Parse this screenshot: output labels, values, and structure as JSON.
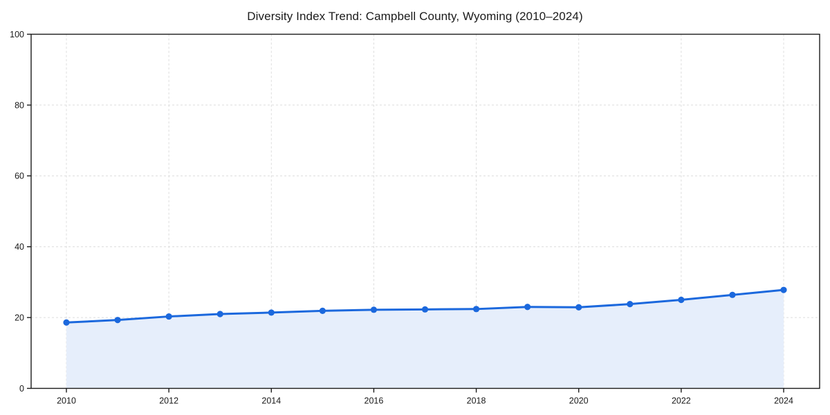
{
  "title": "Diversity Index Trend: Campbell County, Wyoming (2010–2024)",
  "chart_data": {
    "type": "area",
    "title": "Diversity Index Trend: Campbell County, Wyoming (2010–2024)",
    "x": [
      2010,
      2011,
      2012,
      2013,
      2014,
      2015,
      2016,
      2017,
      2018,
      2019,
      2020,
      2021,
      2022,
      2023,
      2024
    ],
    "series": [
      {
        "name": "Diversity Index",
        "values": [
          18.6,
          19.3,
          20.3,
          21.0,
          21.4,
          21.9,
          22.2,
          22.3,
          22.4,
          23.0,
          22.9,
          23.8,
          25.0,
          26.4,
          27.8
        ]
      }
    ],
    "xlabel": "",
    "ylabel": "",
    "ylim": [
      0,
      100
    ],
    "yticks": [
      0,
      20,
      40,
      60,
      80,
      100
    ],
    "xticks": [
      2010,
      2012,
      2014,
      2016,
      2018,
      2020,
      2022,
      2024
    ],
    "grid": "dashed",
    "legend": "none",
    "markers": true,
    "colors": {
      "line": "#1b68dd",
      "fill": "#e6eefb",
      "grid": "#dcdcdc",
      "spine": "#1a1a1a",
      "tick_text": "#1a1a1a"
    }
  }
}
